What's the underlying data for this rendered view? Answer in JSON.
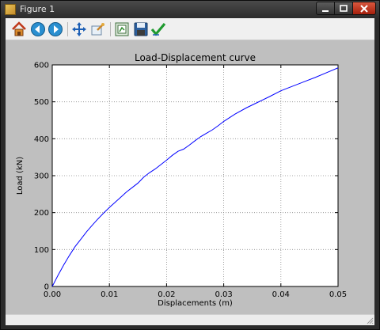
{
  "window": {
    "title": "Figure 1",
    "controls": {
      "minimize": "minimize",
      "maximize": "maximize",
      "close": "close"
    }
  },
  "toolbar": {
    "buttons": [
      {
        "name": "home",
        "icon": "home-icon"
      },
      {
        "name": "back",
        "icon": "back-arrow-icon"
      },
      {
        "name": "forward",
        "icon": "forward-arrow-icon"
      },
      {
        "name": "pan",
        "icon": "move-arrows-icon"
      },
      {
        "name": "zoom",
        "icon": "zoom-rect-icon"
      },
      {
        "name": "subplots",
        "icon": "configure-subplots-icon"
      },
      {
        "name": "save",
        "icon": "floppy-disk-icon"
      },
      {
        "name": "edit-parameters",
        "icon": "checkmark-icon"
      }
    ]
  },
  "colors": {
    "canvas_bg": "#bfbfbf",
    "plot_bg": "#ffffff",
    "line": "#0000ff",
    "grid": "#8a8a8a"
  },
  "chart_data": {
    "type": "line",
    "title": "Load-Displacement curve",
    "xlabel": "Displacements (m)",
    "ylabel": "Load (kN)",
    "xlim": [
      0.0,
      0.05
    ],
    "ylim": [
      0,
      600
    ],
    "xticks": [
      0.0,
      0.01,
      0.02,
      0.03,
      0.04,
      0.05
    ],
    "xtick_labels": [
      "0.00",
      "0.01",
      "0.02",
      "0.03",
      "0.04",
      "0.05"
    ],
    "yticks": [
      0,
      100,
      200,
      300,
      400,
      500,
      600
    ],
    "ytick_labels": [
      "0",
      "100",
      "200",
      "300",
      "400",
      "500",
      "600"
    ],
    "grid": true,
    "series": [
      {
        "x": [
          0.0,
          0.001,
          0.002,
          0.003,
          0.004,
          0.005,
          0.006,
          0.007,
          0.008,
          0.009,
          0.01,
          0.011,
          0.012,
          0.013,
          0.014,
          0.015,
          0.016,
          0.017,
          0.018,
          0.019,
          0.02,
          0.021,
          0.022,
          0.023,
          0.024,
          0.025,
          0.026,
          0.027,
          0.028,
          0.029,
          0.03,
          0.032,
          0.034,
          0.036,
          0.038,
          0.04,
          0.042,
          0.044,
          0.046,
          0.048,
          0.05
        ],
        "y": [
          0,
          30,
          58,
          84,
          108,
          128,
          148,
          166,
          183,
          199,
          214,
          228,
          242,
          256,
          268,
          280,
          296,
          308,
          318,
          330,
          342,
          355,
          366,
          372,
          383,
          395,
          406,
          415,
          424,
          435,
          447,
          467,
          484,
          499,
          514,
          530,
          542,
          554,
          566,
          579,
          592
        ]
      }
    ]
  }
}
